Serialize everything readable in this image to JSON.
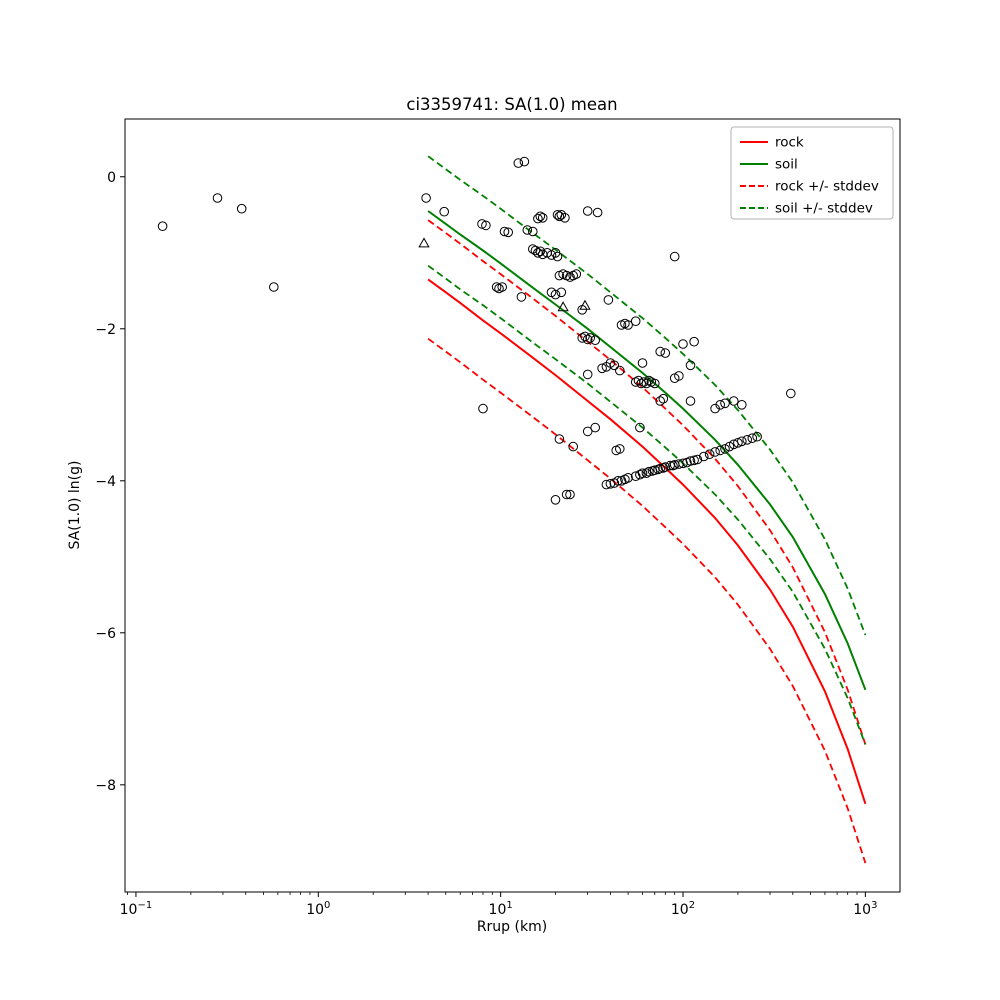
{
  "chart_data": {
    "type": "line+scatter",
    "title": "ci3359741: SA(1.0) mean",
    "xlabel": "Rrup (km)",
    "ylabel": "SA(1.0) ln(g)",
    "xscale": "log",
    "xlim_log10": [
      -1.06,
      3.19
    ],
    "ylim": [
      -9.41,
      0.76
    ],
    "grid": false,
    "legend_position": "upper right",
    "x_ticks": [
      {
        "log": -1,
        "label": "10^-1"
      },
      {
        "log": 0,
        "label": "10^0"
      },
      {
        "log": 1,
        "label": "10^1"
      },
      {
        "log": 2,
        "label": "10^2"
      },
      {
        "log": 3,
        "label": "10^3"
      }
    ],
    "y_ticks": [
      {
        "v": 0,
        "label": "0"
      },
      {
        "v": -2,
        "label": "−2"
      },
      {
        "v": -4,
        "label": "−4"
      },
      {
        "v": -6,
        "label": "−6"
      },
      {
        "v": -8,
        "label": "−8"
      }
    ],
    "legend": [
      {
        "label": "rock",
        "color": "#ff0000",
        "dash": false
      },
      {
        "label": "soil",
        "color": "#008000",
        "dash": false
      },
      {
        "label": "rock +/- stddev",
        "color": "#ff0000",
        "dash": true
      },
      {
        "label": "soil +/- stddev",
        "color": "#008000",
        "dash": true
      }
    ],
    "curves": [
      {
        "name": "rock",
        "color": "#ff0000",
        "sigma": 0.78,
        "R": [
          4,
          5,
          6,
          8,
          10,
          15,
          20,
          30,
          40,
          60,
          80,
          100,
          150,
          200,
          300,
          400,
          600,
          800,
          1000
        ],
        "mean": [
          -1.35,
          -1.52,
          -1.66,
          -1.89,
          -2.06,
          -2.38,
          -2.61,
          -2.95,
          -3.19,
          -3.55,
          -3.83,
          -4.05,
          -4.49,
          -4.85,
          -5.43,
          -5.92,
          -6.77,
          -7.53,
          -8.25
        ]
      },
      {
        "name": "soil",
        "color": "#008000",
        "sigma": 0.72,
        "R": [
          4,
          5,
          6,
          8,
          10,
          15,
          20,
          30,
          40,
          60,
          80,
          100,
          150,
          200,
          300,
          400,
          600,
          800,
          1000
        ],
        "mean": [
          -0.45,
          -0.62,
          -0.76,
          -0.97,
          -1.14,
          -1.46,
          -1.68,
          -2.0,
          -2.24,
          -2.58,
          -2.84,
          -3.05,
          -3.46,
          -3.79,
          -4.31,
          -4.74,
          -5.49,
          -6.14,
          -6.75
        ]
      }
    ],
    "scatter": [
      {
        "name": "recordings-circles",
        "marker": "circle",
        "edge_color": "#000000",
        "fill": "none",
        "points": [
          [
            0.14,
            -0.65
          ],
          [
            0.28,
            -0.28
          ],
          [
            0.38,
            -0.42
          ],
          [
            0.57,
            -1.45
          ],
          [
            12.5,
            0.18
          ],
          [
            13.5,
            0.2
          ],
          [
            3.9,
            -0.28
          ],
          [
            4.9,
            -0.46
          ],
          [
            16,
            -0.55
          ],
          [
            16.5,
            -0.52
          ],
          [
            17,
            -0.54
          ],
          [
            20.5,
            -0.5
          ],
          [
            21,
            -0.52
          ],
          [
            21.5,
            -0.5
          ],
          [
            22.5,
            -0.54
          ],
          [
            30,
            -0.45
          ],
          [
            34,
            -0.47
          ],
          [
            7.9,
            -0.62
          ],
          [
            8.3,
            -0.64
          ],
          [
            10.5,
            -0.72
          ],
          [
            11,
            -0.73
          ],
          [
            14,
            -0.7
          ],
          [
            15,
            -0.72
          ],
          [
            15,
            -0.95
          ],
          [
            15.5,
            -0.97
          ],
          [
            16,
            -1.0
          ],
          [
            16.5,
            -0.98
          ],
          [
            17,
            -1.02
          ],
          [
            18,
            -1.0
          ],
          [
            19,
            -1.03
          ],
          [
            20,
            -1.0
          ],
          [
            20.5,
            -1.05
          ],
          [
            90,
            -1.05
          ],
          [
            21,
            -1.3
          ],
          [
            22,
            -1.28
          ],
          [
            23,
            -1.3
          ],
          [
            24,
            -1.32
          ],
          [
            25,
            -1.3
          ],
          [
            26,
            -1.28
          ],
          [
            9.5,
            -1.45
          ],
          [
            9.8,
            -1.47
          ],
          [
            10.2,
            -1.45
          ],
          [
            13,
            -1.58
          ],
          [
            19,
            -1.52
          ],
          [
            20,
            -1.55
          ],
          [
            21.5,
            -1.52
          ],
          [
            39,
            -1.62
          ],
          [
            28,
            -1.75
          ],
          [
            46,
            -1.95
          ],
          [
            48,
            -1.93
          ],
          [
            50,
            -1.95
          ],
          [
            55,
            -1.9
          ],
          [
            28,
            -2.12
          ],
          [
            29,
            -2.1
          ],
          [
            30,
            -2.14
          ],
          [
            31,
            -2.12
          ],
          [
            33,
            -2.15
          ],
          [
            100,
            -2.2
          ],
          [
            115,
            -2.17
          ],
          [
            75,
            -2.3
          ],
          [
            80,
            -2.32
          ],
          [
            60,
            -2.45
          ],
          [
            40,
            -2.45
          ],
          [
            42,
            -2.48
          ],
          [
            36,
            -2.52
          ],
          [
            38,
            -2.5
          ],
          [
            45,
            -2.55
          ],
          [
            30,
            -2.6
          ],
          [
            110,
            -2.48
          ],
          [
            55,
            -2.7
          ],
          [
            57,
            -2.68
          ],
          [
            59,
            -2.72
          ],
          [
            61,
            -2.7
          ],
          [
            63,
            -2.72
          ],
          [
            65,
            -2.68
          ],
          [
            67,
            -2.7
          ],
          [
            70,
            -2.72
          ],
          [
            90,
            -2.65
          ],
          [
            95,
            -2.62
          ],
          [
            75,
            -2.95
          ],
          [
            78,
            -2.92
          ],
          [
            110,
            -2.95
          ],
          [
            160,
            -3.0
          ],
          [
            170,
            -2.98
          ],
          [
            390,
            -2.85
          ],
          [
            8,
            -3.05
          ],
          [
            150,
            -3.05
          ],
          [
            190,
            -2.95
          ],
          [
            210,
            -3.0
          ],
          [
            30,
            -3.35
          ],
          [
            33,
            -3.3
          ],
          [
            21,
            -3.45
          ],
          [
            43,
            -3.6
          ],
          [
            45,
            -3.58
          ],
          [
            25,
            -3.55
          ],
          [
            58,
            -3.3
          ],
          [
            38,
            -4.05
          ],
          [
            40,
            -4.04
          ],
          [
            42,
            -4.03
          ],
          [
            44,
            -4.0
          ],
          [
            46,
            -4.0
          ],
          [
            48,
            -3.98
          ],
          [
            50,
            -3.96
          ],
          [
            55,
            -3.94
          ],
          [
            58,
            -3.92
          ],
          [
            60,
            -3.9
          ],
          [
            63,
            -3.9
          ],
          [
            65,
            -3.88
          ],
          [
            68,
            -3.87
          ],
          [
            70,
            -3.86
          ],
          [
            73,
            -3.85
          ],
          [
            75,
            -3.84
          ],
          [
            78,
            -3.83
          ],
          [
            80,
            -3.82
          ],
          [
            85,
            -3.8
          ],
          [
            88,
            -3.8
          ],
          [
            90,
            -3.79
          ],
          [
            95,
            -3.78
          ],
          [
            100,
            -3.77
          ],
          [
            105,
            -3.76
          ],
          [
            110,
            -3.74
          ],
          [
            115,
            -3.73
          ],
          [
            120,
            -3.72
          ],
          [
            130,
            -3.68
          ],
          [
            140,
            -3.65
          ],
          [
            150,
            -3.62
          ],
          [
            160,
            -3.6
          ],
          [
            170,
            -3.58
          ],
          [
            180,
            -3.55
          ],
          [
            190,
            -3.52
          ],
          [
            200,
            -3.5
          ],
          [
            210,
            -3.48
          ],
          [
            225,
            -3.46
          ],
          [
            240,
            -3.44
          ],
          [
            255,
            -3.42
          ],
          [
            20,
            -4.25
          ],
          [
            23,
            -4.18
          ],
          [
            24,
            -4.18
          ]
        ]
      },
      {
        "name": "recordings-triangles",
        "marker": "triangle",
        "edge_color": "#000000",
        "fill": "none",
        "points": [
          [
            3.8,
            -0.88
          ],
          [
            22,
            -1.72
          ],
          [
            29,
            -1.7
          ]
        ]
      }
    ]
  }
}
